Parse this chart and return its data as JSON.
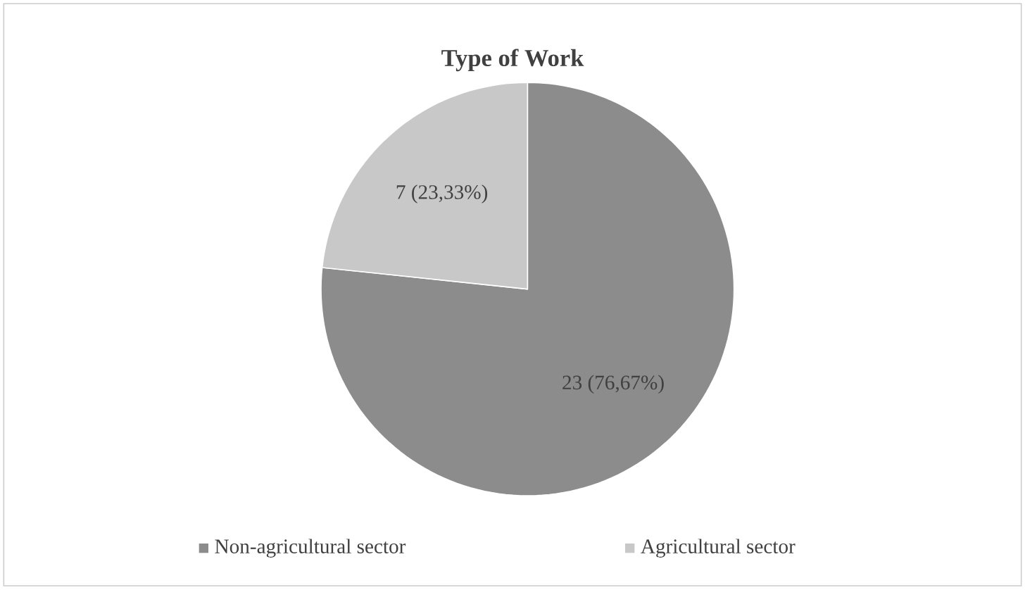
{
  "chart_data": {
    "type": "pie",
    "title": "Type of Work",
    "categories": [
      "Non-agricultural sector",
      "Agricultural sector"
    ],
    "values": [
      23,
      7
    ],
    "colors": [
      "#8c8c8c",
      "#c8c8c8"
    ],
    "value_labels": [
      "23 (76,67%)",
      "7 (23,33%)"
    ],
    "legend": "bottom"
  }
}
